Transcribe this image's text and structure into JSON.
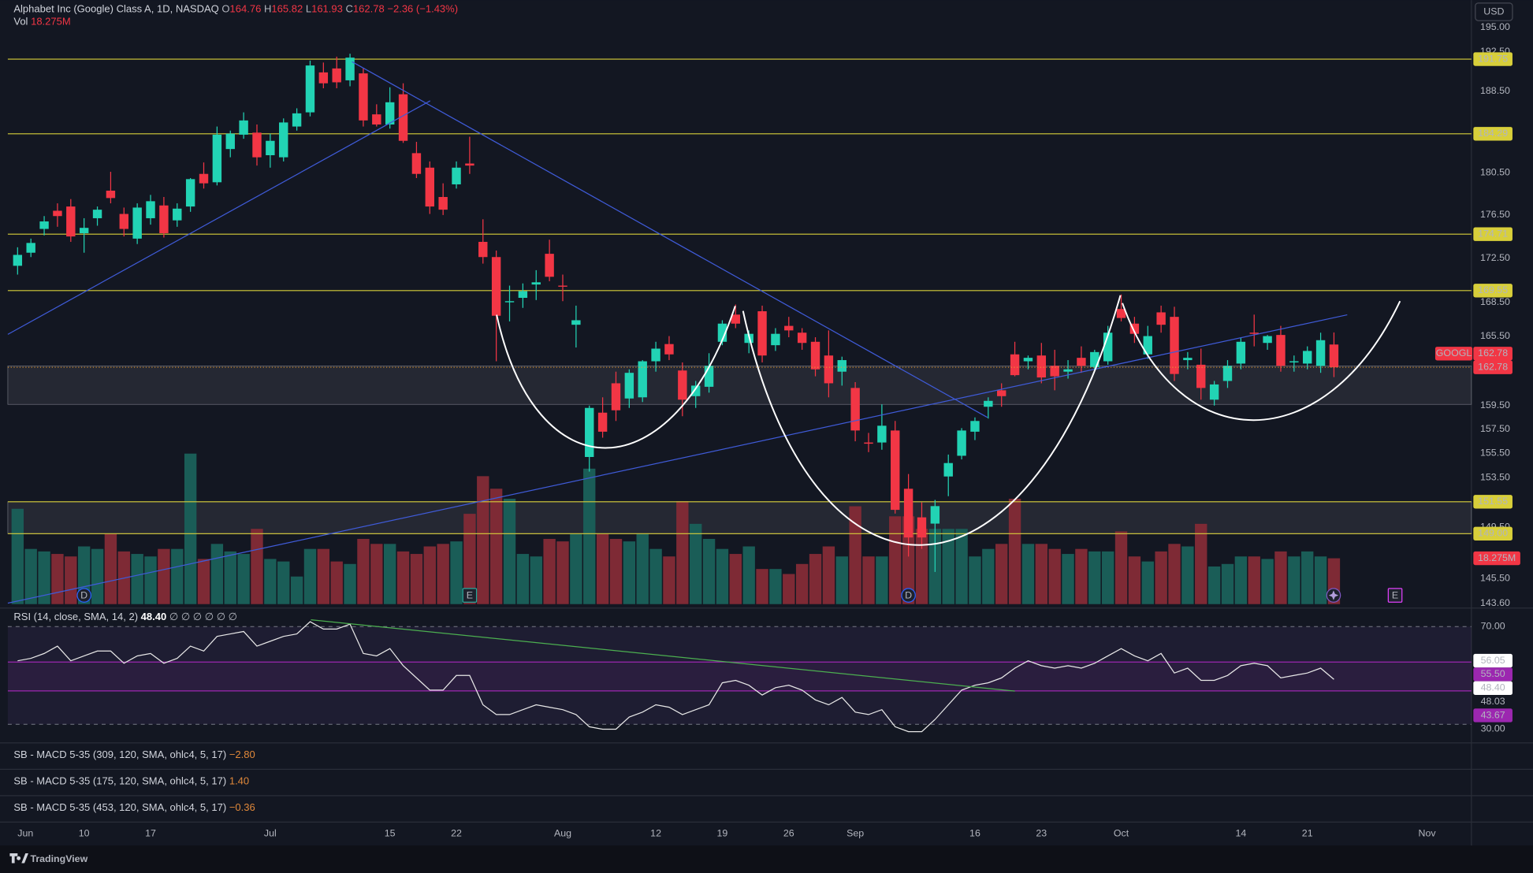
{
  "chart_data": {
    "type": "candlestick",
    "title": "Alphabet Inc (Google) Class A, 1D, NASDAQ",
    "symbol": "GOOGL",
    "currency": "USD",
    "ohlc_labels": [
      "O",
      "H",
      "L",
      "C"
    ],
    "change_label": "−2.36 (−1.43%)",
    "up_color": "#22d3b4",
    "down_color": "#f23645",
    "volume_up_color": "#1a5d57",
    "volume_down_color": "#7e2a35",
    "level_color": "#d8cf3a",
    "log_scale": true,
    "ylim": [
      143.6,
      195
    ],
    "yticks": [
      {
        "value": 195,
        "label": "195.00"
      },
      {
        "value": 192.5,
        "label": "192.50"
      },
      {
        "value": 188.5,
        "label": "188.50"
      },
      {
        "value": 180.5,
        "label": "180.50"
      },
      {
        "value": 176.5,
        "label": "176.50"
      },
      {
        "value": 172.5,
        "label": "172.50"
      },
      {
        "value": 168.5,
        "label": "168.50"
      },
      {
        "value": 165.5,
        "label": "165.50"
      },
      {
        "value": 159.5,
        "label": "159.50"
      },
      {
        "value": 157.5,
        "label": "157.50"
      },
      {
        "value": 155.5,
        "label": "155.50"
      },
      {
        "value": 153.5,
        "label": "153.50"
      },
      {
        "value": 149.5,
        "label": "149.50"
      },
      {
        "value": 145.5,
        "label": "145.50"
      },
      {
        "value": 143.6,
        "label": "143.60"
      }
    ],
    "levels": [
      {
        "value": 191.75,
        "label": "191.75"
      },
      {
        "value": 184.29,
        "label": "184.29"
      },
      {
        "value": 174.71,
        "label": "174.71"
      },
      {
        "value": 169.55,
        "label": "169.55"
      },
      {
        "value": 151.55,
        "label": "151.55"
      },
      {
        "value": 149,
        "label": "149.00"
      }
    ],
    "zones": [
      [
        159.6,
        162.9
      ],
      [
        149,
        151.55
      ]
    ],
    "categories": [
      "Jun",
      null,
      null,
      null,
      null,
      "10",
      null,
      null,
      null,
      null,
      "17",
      null,
      null,
      null,
      null,
      null,
      null,
      null,
      null,
      "Jul",
      null,
      null,
      null,
      null,
      null,
      null,
      null,
      null,
      "15",
      null,
      null,
      null,
      null,
      "22",
      null,
      null,
      null,
      null,
      null,
      null,
      null,
      "Aug",
      null,
      null,
      null,
      null,
      null,
      null,
      "12",
      null,
      null,
      null,
      null,
      "19",
      null,
      null,
      null,
      null,
      "26",
      null,
      null,
      null,
      null,
      "Sep",
      null,
      null,
      null,
      null,
      null,
      null,
      null,
      null,
      "16",
      null,
      null,
      null,
      null,
      "23",
      null,
      null,
      null,
      null,
      null,
      "Oct",
      null,
      null,
      null,
      null,
      null,
      null,
      null,
      null,
      "14",
      null,
      null,
      null,
      null,
      "21",
      null,
      null,
      null,
      null,
      null,
      null,
      null,
      null,
      "Nov"
    ],
    "open": [
      171.8,
      173.0,
      175.2,
      176.9,
      177.3,
      174.8,
      176.2,
      178.8,
      176.6,
      174.3,
      176.2,
      177.4,
      176.0,
      177.3,
      180.4,
      179.6,
      182.8,
      184.2,
      184.4,
      182.2,
      182.0,
      185.0,
      186.4,
      190.4,
      190.8,
      189.6,
      190.3,
      186.2,
      185.2,
      188.2,
      182.4,
      181.0,
      178.2,
      179.4,
      181.4,
      174.0,
      172.6,
      168.5,
      168.9,
      170.1,
      172.9,
      170.0,
      166.5,
      155.2,
      158.9,
      161.4,
      160.1,
      160.2,
      163.3,
      164.8,
      162.5,
      160.3,
      161.1,
      165.0,
      167.4,
      164.9,
      167.7,
      164.7,
      166.4,
      165.8,
      165.0,
      163.8,
      162.4,
      161.0,
      156.4,
      156.4,
      157.4,
      152.6,
      150.3,
      149.8,
      153.6,
      155.3,
      157.3,
      159.4,
      160.8,
      163.9,
      163.3,
      163.8,
      162.9,
      162.4,
      163.6,
      162.8,
      163.3,
      167.9,
      166.6,
      163.9,
      167.6,
      167.2,
      163.4,
      163.0,
      160.0,
      161.6,
      163.1,
      165.8,
      164.9,
      165.6,
      163.2,
      163.1,
      162.9,
      164.76,
      null,
      null,
      null,
      null,
      null,
      null,
      null
    ],
    "high": [
      173.5,
      174.3,
      176.4,
      177.6,
      178.0,
      176.2,
      177.3,
      180.6,
      177.2,
      177.6,
      178.4,
      178.2,
      177.6,
      180.0,
      181.5,
      185.0,
      184.6,
      186.4,
      185.2,
      184.3,
      185.8,
      186.8,
      191.6,
      191.4,
      192.0,
      192.3,
      190.8,
      187.2,
      188.9,
      189.3,
      183.5,
      181.6,
      179.5,
      181.6,
      184.0,
      176.1,
      173.2,
      170.0,
      170.2,
      171.4,
      174.2,
      171.0,
      168.2,
      159.5,
      160.2,
      162.4,
      162.6,
      163.4,
      165.0,
      165.5,
      163.2,
      161.6,
      164.0,
      166.9,
      168.3,
      166.0,
      168.2,
      166.2,
      167.2,
      166.2,
      165.4,
      166.0,
      163.7,
      161.5,
      157.2,
      159.6,
      158.2,
      153.8,
      151.5,
      151.7,
      155.4,
      157.6,
      158.5,
      160.2,
      161.4,
      165.0,
      163.8,
      164.9,
      164.3,
      163.4,
      164.6,
      164.3,
      166.4,
      169.2,
      167.2,
      166.4,
      168.2,
      168.1,
      164.1,
      164.4,
      161.6,
      163.4,
      165.4,
      167.4,
      165.6,
      166.4,
      163.8,
      164.6,
      165.8,
      165.82,
      null,
      null,
      null,
      null,
      null,
      null,
      null
    ],
    "low": [
      171.0,
      172.6,
      174.6,
      175.4,
      174.0,
      173.0,
      175.5,
      177.6,
      174.5,
      173.8,
      175.6,
      174.4,
      175.4,
      176.8,
      179.0,
      179.3,
      182.0,
      183.8,
      181.2,
      181.0,
      181.6,
      184.6,
      186.0,
      188.8,
      188.8,
      189.0,
      185.0,
      185.0,
      184.8,
      183.4,
      180.0,
      176.6,
      176.5,
      179.0,
      180.4,
      172.0,
      163.3,
      166.8,
      168.0,
      168.7,
      170.4,
      168.6,
      164.5,
      154.0,
      156.8,
      158.2,
      159.3,
      159.8,
      162.4,
      163.4,
      158.6,
      159.3,
      160.6,
      164.7,
      166.2,
      164.0,
      163.2,
      164.2,
      165.4,
      164.3,
      162.0,
      160.2,
      161.2,
      156.5,
      155.6,
      155.8,
      150.6,
      147.2,
      147.8,
      146.0,
      152.0,
      155.0,
      156.6,
      158.4,
      159.4,
      162.0,
      162.6,
      161.4,
      160.8,
      161.8,
      162.3,
      162.4,
      163.0,
      166.8,
      164.9,
      163.5,
      165.8,
      161.6,
      162.6,
      160.0,
      159.5,
      161.0,
      162.6,
      164.6,
      164.3,
      162.4,
      162.4,
      162.6,
      162.3,
      161.93,
      null,
      null,
      null,
      null,
      null,
      null,
      null
    ],
    "close": [
      172.8,
      173.9,
      175.9,
      176.4,
      174.5,
      175.3,
      177.0,
      178.1,
      175.2,
      177.2,
      177.8,
      174.8,
      177.1,
      179.9,
      179.5,
      184.2,
      184.3,
      185.6,
      182.0,
      183.6,
      185.4,
      186.3,
      191.1,
      189.3,
      189.4,
      191.9,
      185.6,
      185.2,
      187.4,
      183.6,
      180.4,
      177.3,
      177.0,
      181.0,
      181.2,
      172.6,
      167.3,
      168.6,
      169.5,
      170.3,
      170.8,
      169.9,
      166.9,
      159.3,
      157.3,
      159.1,
      162.3,
      163.3,
      164.4,
      163.9,
      160.0,
      161.2,
      162.9,
      166.6,
      166.6,
      165.7,
      163.8,
      165.7,
      166.0,
      164.9,
      162.6,
      161.4,
      163.4,
      157.4,
      156.3,
      157.8,
      150.9,
      148.7,
      148.7,
      151.2,
      154.7,
      157.4,
      158.2,
      159.9,
      160.3,
      162.1,
      163.6,
      161.9,
      162.0,
      162.6,
      162.9,
      164.1,
      165.8,
      167.1,
      165.7,
      165.5,
      166.5,
      162.2,
      163.6,
      161.0,
      161.3,
      162.9,
      165.0,
      165.7,
      165.5,
      162.9,
      163.3,
      164.2,
      165.14,
      162.78,
      null,
      null,
      null,
      null,
      null,
      null,
      null
    ],
    "volume_name": "Vol",
    "volume_label": "18.275M",
    "vlim": [
      0,
      60
    ],
    "volume": [
      38,
      22,
      21,
      20,
      19,
      23,
      22,
      28,
      21,
      20,
      19,
      22,
      22,
      60,
      18,
      24,
      21,
      20,
      30,
      18,
      17,
      11,
      22,
      22,
      17,
      16,
      26,
      24,
      24,
      21,
      20,
      23,
      24,
      25,
      36,
      51,
      46,
      42,
      20,
      19,
      26,
      25,
      28,
      54,
      28,
      26,
      25,
      28,
      22,
      19,
      41,
      32,
      26,
      22,
      20,
      23,
      14,
      14,
      12,
      16,
      20,
      23,
      19,
      39,
      19,
      19,
      35,
      35,
      30,
      30,
      30,
      30,
      19,
      22,
      24,
      42,
      24,
      24,
      22,
      20,
      22,
      21,
      21,
      29,
      19,
      17,
      21,
      24,
      23,
      32,
      15,
      16,
      19,
      19,
      18,
      21,
      19,
      21,
      19,
      18.275,
      null,
      null,
      null,
      null,
      null,
      null,
      null
    ],
    "events": [
      "D",
      "E",
      "D",
      "E"
    ],
    "rsi": {
      "name": "RSI (14, close, SMA, 14, 2)",
      "value_label": "48.40",
      "flags": "∅ ∅ ∅ ∅ ∅ ∅",
      "color": "#e8e8e8",
      "band_color": "#9c27b0",
      "ylim": [
        23.2,
        73.6
      ],
      "yticks": [
        {
          "value": 70,
          "label": "70.00"
        },
        {
          "value": 30,
          "label": "30.00"
        }
      ],
      "bands": [
        {
          "value": 55.5,
          "label": "55.50"
        },
        {
          "value": 43.67,
          "label": "43.67"
        }
      ],
      "markers": [
        {
          "value": 56.05,
          "label": "56.05"
        },
        {
          "value": 48.03,
          "label": "48.03"
        }
      ],
      "values": [
        56,
        57,
        59,
        62,
        56,
        58,
        60,
        60,
        55,
        58,
        59,
        55,
        57,
        62,
        60,
        66,
        67,
        68,
        62,
        64,
        66,
        67,
        72,
        69,
        69,
        71,
        59,
        58,
        61,
        54,
        49,
        44,
        44,
        50,
        50,
        38,
        34,
        34,
        36,
        38,
        37,
        36,
        34,
        29,
        28,
        28,
        33,
        35,
        38,
        37,
        34,
        36,
        38,
        47,
        48,
        46,
        42,
        45,
        46,
        44,
        40,
        38,
        41,
        35,
        34,
        36,
        29,
        27,
        27,
        32,
        38,
        44,
        46,
        47,
        49,
        53,
        56,
        54,
        53,
        54,
        53,
        55,
        58,
        61,
        58,
        56,
        59,
        51,
        53,
        48,
        48,
        50,
        54,
        55,
        54,
        49,
        50,
        51,
        53,
        48.4,
        null,
        null,
        null,
        null,
        null,
        null,
        null
      ]
    },
    "macd": [
      {
        "name": "SB - MACD 5-35 (309, 120, SMA, ohlc4, 5, 17)",
        "value": -2.8,
        "value_label": "−2.80"
      },
      {
        "name": "SB - MACD 5-35 (175, 120, SMA, ohlc4, 5, 17)",
        "value": 1.4,
        "value_label": "1.40"
      },
      {
        "name": "SB - MACD 5-35 (453, 120, SMA, ohlc4, 5, 17)",
        "value": -0.36,
        "value_label": "−0.36"
      }
    ],
    "macd_color": "#e0883a",
    "brand": "TradingView"
  }
}
